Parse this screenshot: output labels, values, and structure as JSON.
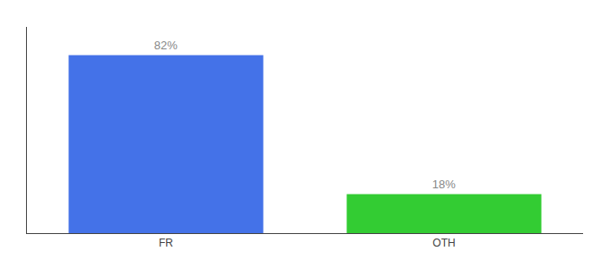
{
  "chart_data": {
    "type": "bar",
    "categories": [
      "FR",
      "OTH"
    ],
    "values": [
      82,
      18
    ],
    "value_labels": [
      "82%",
      "18%"
    ],
    "colors": [
      "#4472e8",
      "#33cc33"
    ],
    "ylim": [
      0,
      95
    ],
    "tick_labels": "x",
    "grid": false,
    "data_labels": true
  }
}
